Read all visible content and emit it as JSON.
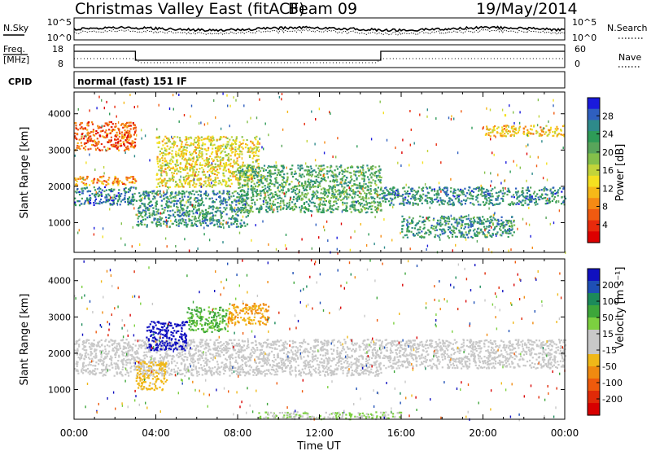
{
  "header": {
    "title": "Christmas Valley East (fitACF)",
    "beam": "Beam 09",
    "date": "19/May/2014"
  },
  "noise_panel": {
    "left_label": "N.Sky",
    "right_label": "N.Search",
    "left_ticks": [
      "10^5",
      "10^0"
    ],
    "right_ticks": [
      "10^5",
      "10^0"
    ]
  },
  "freq_panel": {
    "left_label_line1": "Freq.",
    "left_label_line2": "[MHz]",
    "left_ticks": [
      "18",
      "8"
    ],
    "right_label": "Nave",
    "right_ticks": [
      "60",
      "0"
    ]
  },
  "cpid": {
    "label": "CPID",
    "value": "normal (fast) 151 IF"
  },
  "time_axis": {
    "label": "Time UT",
    "ticks": [
      "00:00",
      "04:00",
      "08:00",
      "12:00",
      "16:00",
      "20:00",
      "00:00"
    ]
  },
  "chart_data": [
    {
      "type": "heatmap",
      "name": "power",
      "ylabel": "Slant Range [km]",
      "yticks": [
        1000,
        2000,
        3000,
        4000
      ],
      "ylim": [
        180,
        4600
      ],
      "xlim_hours": [
        0,
        24
      ],
      "colorbar": {
        "label": "Power [dB]",
        "ticks": [
          4,
          8,
          12,
          16,
          20,
          24,
          28
        ],
        "range": [
          0,
          32
        ],
        "colors": [
          "#1a1adc",
          "#2f5fbf",
          "#2e8a8a",
          "#2e9b57",
          "#58a55a",
          "#84c04a",
          "#c2d43a",
          "#f4e020",
          "#f6b818",
          "#f58a14",
          "#f05a10",
          "#e82a0c",
          "#dd0000"
        ]
      },
      "features": [
        {
          "time_hours": [
            0,
            3
          ],
          "range_km": [
            1500,
            2000
          ],
          "level_db": 26
        },
        {
          "time_hours": [
            0,
            3
          ],
          "range_km": [
            2050,
            2300
          ],
          "level_db": 9
        },
        {
          "time_hours": [
            0,
            3
          ],
          "range_km": [
            3000,
            3800
          ],
          "level_db": 6
        },
        {
          "time_hours": [
            3,
            8.5
          ],
          "range_km": [
            900,
            1900
          ],
          "level_db": 24
        },
        {
          "time_hours": [
            4,
            9
          ],
          "range_km": [
            2000,
            3400
          ],
          "level_db": 14
        },
        {
          "time_hours": [
            8,
            15
          ],
          "range_km": [
            1300,
            2600
          ],
          "level_db": 22
        },
        {
          "time_hours": [
            15,
            24
          ],
          "range_km": [
            1500,
            2000
          ],
          "level_db": 25
        },
        {
          "time_hours": [
            16,
            21.5
          ],
          "range_km": [
            600,
            1200
          ],
          "level_db": 24
        },
        {
          "time_hours": [
            20,
            24
          ],
          "range_km": [
            3400,
            3700
          ],
          "level_db": 12
        }
      ]
    },
    {
      "type": "heatmap",
      "name": "velocity",
      "ylabel": "Slant Range [km]",
      "yticks": [
        1000,
        2000,
        3000,
        4000
      ],
      "ylim": [
        180,
        4600
      ],
      "xlim_hours": [
        0,
        24
      ],
      "colorbar": {
        "label": "Velocity [m s⁻¹]",
        "ticks": [
          200,
          100,
          50,
          15,
          -15,
          -50,
          -100,
          -200
        ],
        "colors": [
          "#1010c0",
          "#1e4fb5",
          "#1c8a5a",
          "#3da63a",
          "#7cd040",
          "#c8c8c8",
          "#c8c8c8",
          "#f0b818",
          "#f08a10",
          "#ee5a0c",
          "#e02a08",
          "#d80000"
        ]
      },
      "features": [
        {
          "time_hours": [
            0,
            15
          ],
          "range_km": [
            1400,
            2400
          ],
          "velocity": 0
        },
        {
          "time_hours": [
            15,
            24
          ],
          "range_km": [
            1600,
            2400
          ],
          "velocity": 0
        },
        {
          "time_hours": [
            3.5,
            5.5
          ],
          "range_km": [
            2100,
            2900
          ],
          "velocity": 250
        },
        {
          "time_hours": [
            5.5,
            7.5
          ],
          "range_km": [
            2600,
            3300
          ],
          "velocity": 90
        },
        {
          "time_hours": [
            7.5,
            9.5
          ],
          "range_km": [
            2800,
            3400
          ],
          "velocity": -80
        },
        {
          "time_hours": [
            3,
            4.5
          ],
          "range_km": [
            1000,
            1800
          ],
          "velocity": -60
        },
        {
          "time_hours": [
            9,
            16
          ],
          "range_km": [
            200,
            400
          ],
          "velocity": 40
        }
      ]
    }
  ]
}
